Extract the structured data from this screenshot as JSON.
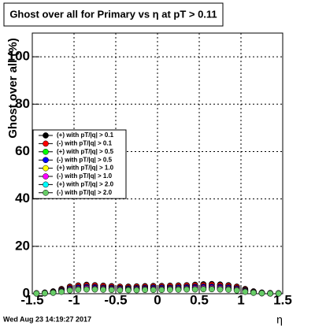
{
  "chart_data": {
    "type": "scatter",
    "title": "Ghost over all for Primary vs  η at pT > 0.11",
    "y_label": "Ghost over all (%)",
    "x_label": "η",
    "annotation": "Wed Aug 23 14:19:27 2017",
    "xlim": [
      -1.5,
      1.5
    ],
    "ylim": [
      0,
      110
    ],
    "xticks": [
      -1.5,
      -1,
      -0.5,
      0,
      0.5,
      1,
      1.5
    ],
    "yticks": [
      0,
      20,
      40,
      60,
      80,
      100
    ],
    "grid": true,
    "legend": "left",
    "x": [
      -1.45,
      -1.35,
      -1.25,
      -1.15,
      -1.05,
      -0.95,
      -0.85,
      -0.75,
      -0.65,
      -0.55,
      -0.45,
      -0.35,
      -0.25,
      -0.15,
      -0.05,
      0.05,
      0.15,
      0.25,
      0.35,
      0.45,
      0.55,
      0.65,
      0.75,
      0.85,
      0.95,
      1.05,
      1.15,
      1.25,
      1.35,
      1.45
    ],
    "series": [
      {
        "name": "(+) with pT/|q| > 0.1",
        "color": "#000000",
        "values": [
          0.2,
          0.5,
          1.0,
          2.0,
          3.0,
          3.5,
          3.8,
          3.6,
          3.4,
          3.2,
          3.0,
          3.0,
          3.1,
          3.2,
          3.3,
          3.3,
          3.4,
          3.5,
          3.6,
          3.8,
          4.0,
          4.1,
          3.9,
          3.6,
          3.0,
          2.0,
          1.0,
          0.5,
          0.3,
          0.2
        ]
      },
      {
        "name": "(-) with pT/|q| > 0.1",
        "color": "#ff0000",
        "values": [
          0.2,
          0.4,
          0.9,
          1.8,
          2.8,
          3.3,
          3.5,
          3.4,
          3.2,
          3.0,
          2.9,
          2.8,
          2.9,
          3.0,
          3.1,
          3.1,
          3.2,
          3.3,
          3.4,
          3.5,
          3.6,
          3.7,
          3.5,
          3.3,
          2.8,
          1.8,
          0.9,
          0.4,
          0.2,
          0.2
        ]
      },
      {
        "name": "(+) with pT/|q| > 0.5",
        "color": "#00ff00",
        "values": [
          0.1,
          0.3,
          0.7,
          1.5,
          2.3,
          2.7,
          2.9,
          2.8,
          2.6,
          2.5,
          2.4,
          2.3,
          2.4,
          2.5,
          2.6,
          2.6,
          2.6,
          2.7,
          2.8,
          2.9,
          3.0,
          3.0,
          2.9,
          2.7,
          2.3,
          1.5,
          0.7,
          0.3,
          0.1,
          0.1
        ]
      },
      {
        "name": "(-) with pT/|q| > 0.5",
        "color": "#0000ff",
        "values": [
          0.1,
          0.3,
          0.7,
          1.4,
          2.2,
          2.6,
          2.8,
          2.7,
          2.5,
          2.4,
          2.3,
          2.2,
          2.3,
          2.4,
          2.5,
          2.5,
          2.5,
          2.6,
          2.7,
          2.8,
          2.9,
          2.9,
          2.8,
          2.6,
          2.2,
          1.4,
          0.7,
          0.3,
          0.1,
          0.1
        ]
      },
      {
        "name": "(+) with pT/|q| > 1.0",
        "color": "#ffff00",
        "values": [
          0.1,
          0.2,
          0.6,
          1.2,
          1.9,
          2.2,
          2.4,
          2.3,
          2.2,
          2.1,
          2.0,
          1.9,
          2.0,
          2.1,
          2.1,
          2.1,
          2.2,
          2.2,
          2.3,
          2.4,
          2.5,
          2.5,
          2.4,
          2.2,
          1.9,
          1.2,
          0.6,
          0.2,
          0.1,
          0.1
        ]
      },
      {
        "name": "(-) with pT/|q| > 1.0",
        "color": "#ff00ff",
        "values": [
          0.1,
          0.2,
          0.5,
          1.1,
          1.8,
          2.1,
          2.3,
          2.2,
          2.1,
          2.0,
          1.9,
          1.8,
          1.9,
          2.0,
          2.0,
          2.0,
          2.1,
          2.1,
          2.2,
          2.3,
          2.4,
          2.4,
          2.3,
          2.1,
          1.8,
          1.1,
          0.5,
          0.2,
          0.1,
          0.1
        ]
      },
      {
        "name": "(+) with pT/|q| > 2.0",
        "color": "#00ffff",
        "values": [
          0.1,
          0.2,
          0.4,
          0.9,
          1.5,
          1.8,
          1.9,
          1.9,
          1.8,
          1.7,
          1.6,
          1.6,
          1.6,
          1.7,
          1.7,
          1.7,
          1.8,
          1.8,
          1.9,
          1.9,
          2.0,
          2.0,
          1.9,
          1.8,
          1.5,
          0.9,
          0.4,
          0.2,
          0.1,
          0.1
        ]
      },
      {
        "name": "(-) with pT/|q| > 2.0",
        "color": "#66cc66",
        "values": [
          0.1,
          0.2,
          0.4,
          0.8,
          1.4,
          1.7,
          1.8,
          1.8,
          1.7,
          1.6,
          1.5,
          1.5,
          1.5,
          1.6,
          1.6,
          1.6,
          1.7,
          1.7,
          1.8,
          1.8,
          1.9,
          1.9,
          1.8,
          1.7,
          1.4,
          0.8,
          0.4,
          0.2,
          0.1,
          0.1
        ]
      }
    ]
  }
}
